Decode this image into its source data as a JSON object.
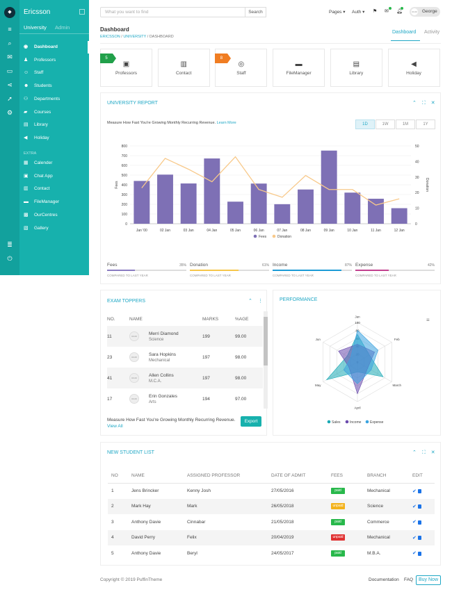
{
  "app": {
    "brand": "Ericsson",
    "tabs": [
      "University",
      "Admin"
    ]
  },
  "sidebar": {
    "items": [
      {
        "label": "Dashboard",
        "icon": "dashboard-icon",
        "active": true
      },
      {
        "label": "Professors",
        "icon": "professors-icon"
      },
      {
        "label": "Staff",
        "icon": "staff-icon"
      },
      {
        "label": "Students",
        "icon": "students-icon"
      },
      {
        "label": "Departments",
        "icon": "departments-icon"
      },
      {
        "label": "Courses",
        "icon": "courses-icon"
      },
      {
        "label": "Library",
        "icon": "library-icon"
      },
      {
        "label": "Holiday",
        "icon": "holiday-icon"
      }
    ],
    "extra_label": "EXTRA",
    "extra_items": [
      {
        "label": "Calender",
        "icon": "calendar-icon"
      },
      {
        "label": "Chat App",
        "icon": "chat-icon"
      },
      {
        "label": "Contact",
        "icon": "contact-icon"
      },
      {
        "label": "FileManager",
        "icon": "folder-icon"
      },
      {
        "label": "OurCentres",
        "icon": "map-icon"
      },
      {
        "label": "Gallery",
        "icon": "gallery-icon"
      }
    ]
  },
  "topbar": {
    "search_placeholder": "What you want to find",
    "search_button": "Search",
    "menu_pages": "Pages",
    "menu_auth": "Auth",
    "avatar_text": "40x40",
    "user_name": "George"
  },
  "page": {
    "title": "Dashboard",
    "breadcrumb": [
      "ERICSSON",
      "UNIVERSITY",
      "DASHBOARD"
    ],
    "tabs": [
      "Dashboard",
      "Activity"
    ]
  },
  "quick_cards": [
    {
      "label": "Professors",
      "icon": "professor-icon",
      "badge": "5",
      "badge_color": "#21a04a"
    },
    {
      "label": "Contact",
      "icon": "contact-card-icon"
    },
    {
      "label": "Staff",
      "icon": "staff-user-icon",
      "badge": "8",
      "badge_color": "#f07d22"
    },
    {
      "label": "FileManager",
      "icon": "folder-icon"
    },
    {
      "label": "Library",
      "icon": "book-icon"
    },
    {
      "label": "Holiday",
      "icon": "megaphone-icon"
    }
  ],
  "report": {
    "title": "UNIVERSITY REPORT",
    "subtitle": "Measure How Fast You're Growing Monthly Recurring Revenue.",
    "learn_more": "Learn More",
    "ranges": [
      "1D",
      "1W",
      "1M",
      "1Y"
    ],
    "active_range": "1D",
    "stats": [
      {
        "label": "Fees",
        "percent": "35%",
        "value": 0.35,
        "color": "#8a7cc1",
        "caption": "COMPARED TO LAST YEAR"
      },
      {
        "label": "Donation",
        "percent": "61%",
        "value": 0.61,
        "color": "#f6c64a",
        "caption": "COMPARED TO LAST YEAR"
      },
      {
        "label": "Income",
        "percent": "87%",
        "value": 0.87,
        "color": "#1c9bd6",
        "caption": "COMPARED TO LAST YEAR"
      },
      {
        "label": "Expense",
        "percent": "42%",
        "value": 0.42,
        "color": "#c2418f",
        "caption": "COMPARED TO LAST YEAR"
      }
    ]
  },
  "toppers": {
    "title": "EXAM TOPPERS",
    "columns": [
      "NO.",
      "NAME",
      "MARKS",
      "%AGE"
    ],
    "avatar_text": "40x40",
    "rows": [
      {
        "no": "11",
        "name": "Merri Diamond",
        "dept": "Science",
        "marks": "199",
        "pct": "99.00"
      },
      {
        "no": "23",
        "name": "Sara Hopkins",
        "dept": "Mechanical",
        "marks": "197",
        "pct": "98.00"
      },
      {
        "no": "41",
        "name": "Allen Collins",
        "dept": "M.C.A.",
        "marks": "197",
        "pct": "98.00"
      },
      {
        "no": "17",
        "name": "Erin Gonzales",
        "dept": "Arts",
        "marks": "194",
        "pct": "97.00"
      }
    ],
    "footer_text": "Measure How Fast You're Growing Monthly Recurring Revenue.",
    "view_all": "View All",
    "export": "Export"
  },
  "performance": {
    "title": "PERFORMANCE"
  },
  "students": {
    "title": "NEW STUDENT LIST",
    "columns": [
      "NO",
      "NAME",
      "ASSIGNED PROFESSOR",
      "DATE OF ADMIT",
      "FEES",
      "BRANCH",
      "EDIT"
    ],
    "rows": [
      {
        "no": "1",
        "name": "Jens Brincker",
        "prof": "Kenny Josh",
        "date": "27/05/2016",
        "fees": "paid",
        "fees_color": "#28b84b",
        "branch": "Mechanical"
      },
      {
        "no": "2",
        "name": "Mark Hay",
        "prof": "Mark",
        "date": "26/05/2018",
        "fees": "unpaid",
        "fees_color": "#f3b21b",
        "branch": "Science"
      },
      {
        "no": "3",
        "name": "Anthony Davie",
        "prof": "Cinnabar",
        "date": "21/05/2018",
        "fees": "paid",
        "fees_color": "#28b84b",
        "branch": "Commerce"
      },
      {
        "no": "4",
        "name": "David Perry",
        "prof": "Felix",
        "date": "20/04/2019",
        "fees": "unpaid",
        "fees_color": "#e03131",
        "branch": "Mechanical"
      },
      {
        "no": "5",
        "name": "Anthony Davie",
        "prof": "Beryl",
        "date": "24/05/2017",
        "fees": "paid",
        "fees_color": "#28b84b",
        "branch": "M.B.A."
      }
    ]
  },
  "footer": {
    "copyright": "Copyright © 2019 PuffinTheme",
    "links": [
      "Documentation",
      "FAQ"
    ],
    "buy": "Buy Now"
  },
  "chart_data": [
    {
      "type": "bar",
      "categories": [
        "Jan '00",
        "02 Jan",
        "03 Jan",
        "04 Jan",
        "05 Jan",
        "06 Jan",
        "07 Jan",
        "08 Jan",
        "09 Jan",
        "10 Jan",
        "11 Jan",
        "12 Jan"
      ],
      "series": [
        {
          "name": "Fees",
          "type": "bar",
          "axis": "left",
          "color": "#7e70b5",
          "values": [
            440,
            505,
            414,
            671,
            227,
            413,
            201,
            352,
            752,
            320,
            257,
            160
          ]
        },
        {
          "name": "Donation",
          "type": "line",
          "axis": "right",
          "color": "#f8c98a",
          "values": [
            23,
            42,
            35,
            27,
            43,
            22,
            17,
            31,
            22,
            22,
            12,
            16
          ]
        }
      ],
      "ylim": [
        0,
        800
      ],
      "yticks": [
        0,
        100,
        200,
        300,
        400,
        500,
        600,
        700,
        800
      ],
      "ylabel": "Fees",
      "y2lim": [
        0,
        50
      ],
      "y2ticks": [
        0,
        10,
        20,
        30,
        40,
        50
      ],
      "y2label": "Donation",
      "legend": "bottom"
    },
    {
      "type": "radar",
      "axes": [
        "Jan",
        "Feb",
        "March",
        "April",
        "May",
        "Jun"
      ],
      "rmax": 100,
      "rticks": [
        0,
        20,
        40,
        60,
        80,
        100
      ],
      "series": [
        {
          "name": "Sales",
          "color": "#1aa9b4",
          "values": [
            70,
            35,
            75,
            25,
            90,
            30
          ]
        },
        {
          "name": "Income",
          "color": "#6a4aad",
          "values": [
            45,
            50,
            30,
            80,
            25,
            55
          ]
        },
        {
          "name": "Expense",
          "color": "#3aa3e0",
          "values": [
            80,
            60,
            40,
            55,
            40,
            20
          ]
        }
      ],
      "legend": "bottom"
    }
  ]
}
